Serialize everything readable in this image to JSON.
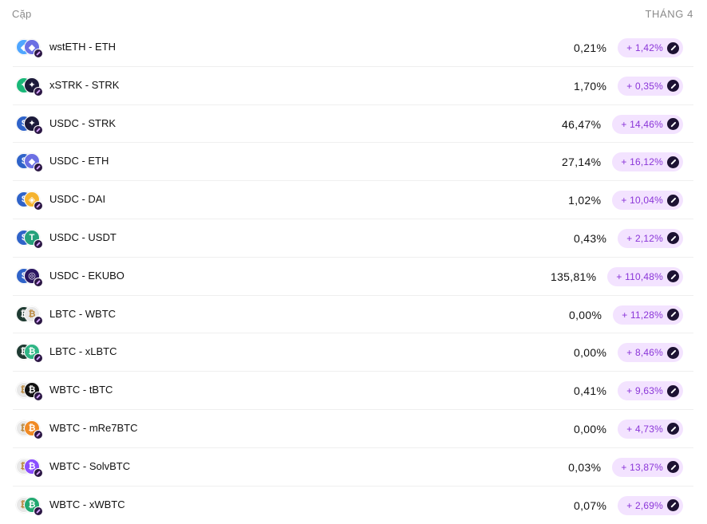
{
  "header": {
    "pair_label": "Cặp",
    "month_label": "THÁNG 4"
  },
  "colors": {
    "pill_bg": "#f3e3ff",
    "pill_text": "#8a35d8",
    "usdc": "#2f63c9",
    "eth": "#6b6fe3",
    "strk": "#1c1a3a",
    "wsteth": "#4fa6ff",
    "xstrk": "#19b878",
    "dai": "#f5b32f",
    "usdt": "#26a17b",
    "ekubo": "#2a1660",
    "lbtc": "#1f3b32",
    "wbtc": "#e8e8e8",
    "xlbtc": "#2fb585",
    "tbtc": "#111111",
    "mre7btc": "#f08a24",
    "solvbtc": "#8a4dff",
    "xwbtc": "#22a870"
  },
  "rows": [
    {
      "pair": "wstETH - ETH",
      "apr": "0,21%",
      "bonus": "+ 1,42%",
      "icon_a": "wsteth-icon",
      "icon_b": "eth-icon"
    },
    {
      "pair": "xSTRK - STRK",
      "apr": "1,70%",
      "bonus": "+ 0,35%",
      "icon_a": "xstrk-icon",
      "icon_b": "strk-icon"
    },
    {
      "pair": "USDC - STRK",
      "apr": "46,47%",
      "bonus": "+ 14,46%",
      "icon_a": "usdc-icon",
      "icon_b": "strk-icon"
    },
    {
      "pair": "USDC - ETH",
      "apr": "27,14%",
      "bonus": "+ 16,12%",
      "icon_a": "usdc-icon",
      "icon_b": "eth-icon"
    },
    {
      "pair": "USDC - DAI",
      "apr": "1,02%",
      "bonus": "+ 10,04%",
      "icon_a": "usdc-icon",
      "icon_b": "dai-icon"
    },
    {
      "pair": "USDC - USDT",
      "apr": "0,43%",
      "bonus": "+ 2,12%",
      "icon_a": "usdc-icon",
      "icon_b": "usdt-icon"
    },
    {
      "pair": "USDC - EKUBO",
      "apr": "135,81%",
      "bonus": "+ 110,48%",
      "icon_a": "usdc-icon",
      "icon_b": "ekubo-icon"
    },
    {
      "pair": "LBTC - WBTC",
      "apr": "0,00%",
      "bonus": "+ 11,28%",
      "icon_a": "lbtc-icon",
      "icon_b": "wbtc-icon"
    },
    {
      "pair": "LBTC - xLBTC",
      "apr": "0,00%",
      "bonus": "+ 8,46%",
      "icon_a": "lbtc-icon",
      "icon_b": "xlbtc-icon"
    },
    {
      "pair": "WBTC - tBTC",
      "apr": "0,41%",
      "bonus": "+ 9,63%",
      "icon_a": "wbtc-icon",
      "icon_b": "tbtc-icon"
    },
    {
      "pair": "WBTC - mRe7BTC",
      "apr": "0,00%",
      "bonus": "+ 4,73%",
      "icon_a": "wbtc-icon",
      "icon_b": "mre7btc-icon"
    },
    {
      "pair": "WBTC - SolvBTC",
      "apr": "0,03%",
      "bonus": "+ 13,87%",
      "icon_a": "wbtc-icon",
      "icon_b": "solvbtc-icon"
    },
    {
      "pair": "WBTC - xWBTC",
      "apr": "0,07%",
      "bonus": "+ 2,69%",
      "icon_a": "wbtc-icon",
      "icon_b": "xwbtc-icon"
    }
  ]
}
